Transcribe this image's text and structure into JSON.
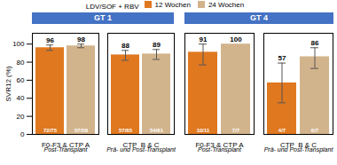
{
  "chart_data": [
    {
      "type": "bar",
      "title": "GT 1",
      "ylabel": "SVR12 (%)",
      "categories": [
        "F0-F3 & CTP A",
        "CTP  B & C"
      ],
      "category_sublabels": [
        "Post-Transplant",
        "Prä- und Post-Transplant"
      ],
      "series": [
        {
          "name": "12 Wochen",
          "color": "#E07820",
          "values": [
            96,
            88
          ],
          "error_lo": [
            3,
            6
          ],
          "error_hi": [
            3,
            5
          ],
          "fractions": [
            "72/75",
            "57/65"
          ]
        },
        {
          "name": "24 Wochen",
          "color": "#D2B48C",
          "values": [
            98,
            89
          ],
          "error_lo": [
            2,
            6
          ],
          "error_hi": [
            2,
            5
          ],
          "fractions": [
            "57/58",
            "54/61"
          ]
        }
      ],
      "ylim": [
        0,
        112
      ],
      "yticks": [
        0,
        20,
        40,
        60,
        80,
        100
      ],
      "grid": false,
      "data_labels": true,
      "legend": "top",
      "legend_title": "LDV/SOF + RBV",
      "header_color": "#4472C4"
    },
    {
      "type": "bar",
      "title": "GT 4",
      "categories": [
        "F0-F3 & CTP A",
        "CTP  B & C"
      ],
      "category_sublabels": [
        "Post-Transplant",
        "Prä- und Post-Transplant"
      ],
      "series": [
        {
          "name": "12 Wochen",
          "color": "#E07820",
          "values": [
            91,
            57
          ],
          "error_lo": [
            14,
            22
          ],
          "error_hi": [
            9,
            22
          ],
          "fractions": [
            "10/11",
            "4/7"
          ]
        },
        {
          "name": "24 Wochen",
          "color": "#D2B48C",
          "values": [
            100,
            86
          ],
          "error_lo": [
            0,
            13
          ],
          "error_hi": [
            0,
            10
          ],
          "fractions": [
            "7/7",
            "6/7"
          ]
        }
      ],
      "ylim": [
        0,
        112
      ],
      "yticks": [
        0,
        20,
        40,
        60,
        80,
        100
      ],
      "grid": false,
      "data_labels": true,
      "tick_labels": "x",
      "header_color": "#4472C4"
    }
  ]
}
